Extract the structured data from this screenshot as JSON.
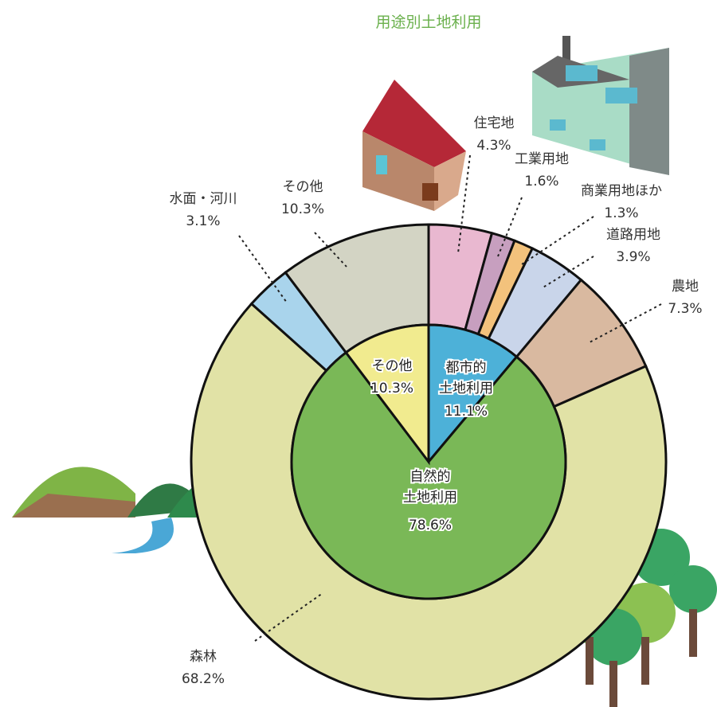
{
  "chart_data": {
    "type": "donut",
    "title": "用途別土地利用",
    "outer": {
      "categories": [
        "住宅地",
        "工業用地",
        "商業用地ほか",
        "道路用地",
        "農地",
        "森林",
        "水面・河川",
        "その他"
      ],
      "values": [
        4.3,
        1.6,
        1.3,
        3.9,
        7.3,
        68.2,
        3.1,
        10.3
      ],
      "value_labels": [
        "4.3%",
        "1.6%",
        "1.3%",
        "3.9%",
        "7.3%",
        "68.2%",
        "3.1%",
        "10.3%"
      ],
      "colors": [
        "#e9b8d0",
        "#c79fbf",
        "#f3c27c",
        "#c9d5ea",
        "#d9b9a0",
        "#e1e2a6",
        "#a9d4ec",
        "#d3d4c4"
      ]
    },
    "inner": {
      "categories": [
        "都市的\n土地利用",
        "自然的\n土地利用",
        "その他"
      ],
      "values": [
        11.1,
        78.6,
        10.3
      ],
      "value_labels": [
        "11.1%",
        "78.6%",
        "10.3%"
      ],
      "colors": [
        "#4db1d8",
        "#7ab857",
        "#f1eb8f"
      ]
    }
  }
}
